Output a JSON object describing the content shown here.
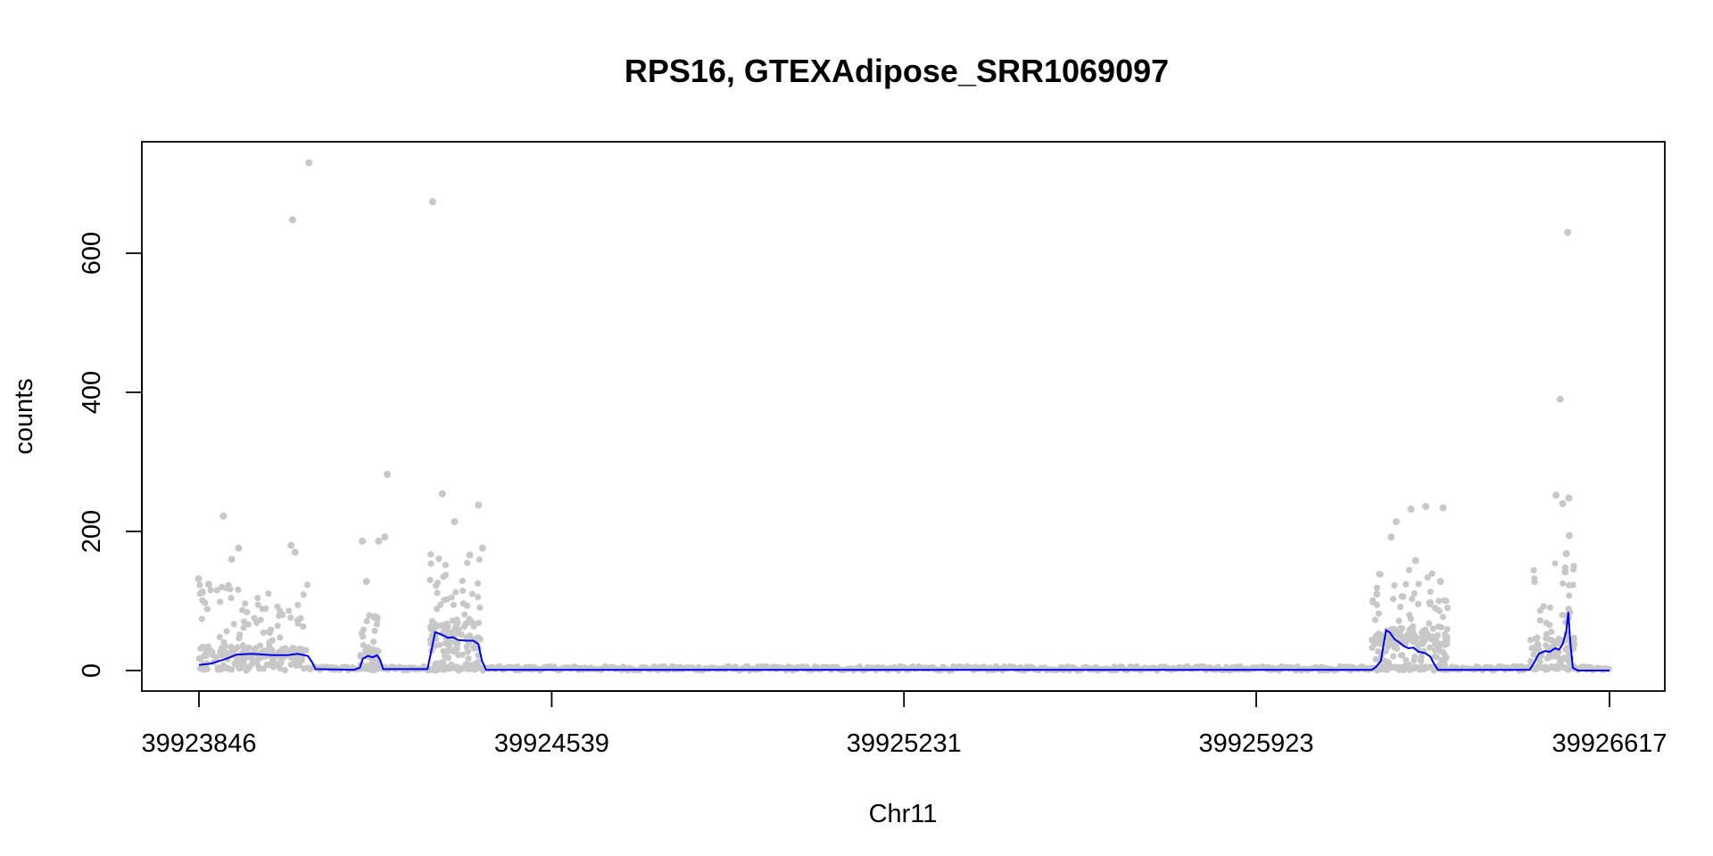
{
  "chart_data": {
    "type": "scatter",
    "title": "RPS16, GTEXAdipose_SRR1069097",
    "xlabel": "Chr11",
    "ylabel": "counts",
    "xlim": [
      39923846,
      39926617
    ],
    "ylim": [
      0,
      730
    ],
    "x_ticks": [
      39923846,
      39924539,
      39925231,
      39925923,
      39926617
    ],
    "y_ticks": [
      0,
      200,
      400,
      600
    ],
    "grid": false,
    "legend": "none",
    "colors": {
      "points": "#c8c8c8",
      "smooth": "#0000ee",
      "axis": "#000000"
    },
    "outlier_points": [
      {
        "x": 39924030,
        "y": 648
      },
      {
        "x": 39924062,
        "y": 730
      },
      {
        "x": 39924305,
        "y": 674
      },
      {
        "x": 39926535,
        "y": 630
      },
      {
        "x": 39926520,
        "y": 390
      },
      {
        "x": 39924216,
        "y": 282
      },
      {
        "x": 39923894,
        "y": 222
      },
      {
        "x": 39926512,
        "y": 252
      },
      {
        "x": 39926537,
        "y": 248
      },
      {
        "x": 39926525,
        "y": 240
      },
      {
        "x": 39924324,
        "y": 254
      },
      {
        "x": 39924395,
        "y": 238
      },
      {
        "x": 39924199,
        "y": 186
      },
      {
        "x": 39924211,
        "y": 192
      },
      {
        "x": 39924167,
        "y": 186
      },
      {
        "x": 39924348,
        "y": 214
      },
      {
        "x": 39924403,
        "y": 176
      },
      {
        "x": 39924378,
        "y": 166
      },
      {
        "x": 39926227,
        "y": 232
      },
      {
        "x": 39926256,
        "y": 236
      },
      {
        "x": 39926290,
        "y": 234
      },
      {
        "x": 39926198,
        "y": 214
      },
      {
        "x": 39926188,
        "y": 192
      },
      {
        "x": 39926236,
        "y": 158
      },
      {
        "x": 39924027,
        "y": 180
      },
      {
        "x": 39924035,
        "y": 170
      },
      {
        "x": 39923924,
        "y": 176
      },
      {
        "x": 39923910,
        "y": 160
      },
      {
        "x": 39926538,
        "y": 194
      },
      {
        "x": 39926532,
        "y": 168
      },
      {
        "x": 39923845,
        "y": 132
      },
      {
        "x": 39923865,
        "y": 124
      },
      {
        "x": 39924175,
        "y": 128
      },
      {
        "x": 39926530,
        "y": 142
      },
      {
        "x": 39926160,
        "y": 110
      },
      {
        "x": 39926285,
        "y": 128
      }
    ],
    "clusters": [
      {
        "x_start": 39923846,
        "x_end": 39924060,
        "points": 230,
        "y_max": 130,
        "y_median": 22
      },
      {
        "x_start": 39924163,
        "x_end": 39924200,
        "points": 50,
        "y_max": 110,
        "y_median": 18
      },
      {
        "x_start": 39924300,
        "x_end": 39924400,
        "points": 140,
        "y_max": 170,
        "y_median": 45
      },
      {
        "x_start": 39926150,
        "x_end": 39926300,
        "points": 190,
        "y_max": 150,
        "y_median": 38
      },
      {
        "x_start": 39926460,
        "x_end": 39926550,
        "points": 100,
        "y_max": 160,
        "y_median": 30
      }
    ],
    "baseline": {
      "x_start": 39924060,
      "x_end": 39926617,
      "y_range": [
        0,
        6
      ]
    },
    "smooth_line": [
      {
        "x": 39923846,
        "y": 8
      },
      {
        "x": 39923870,
        "y": 10
      },
      {
        "x": 39923900,
        "y": 17
      },
      {
        "x": 39923920,
        "y": 23
      },
      {
        "x": 39923950,
        "y": 24
      },
      {
        "x": 39923990,
        "y": 22
      },
      {
        "x": 39924020,
        "y": 22
      },
      {
        "x": 39924040,
        "y": 24
      },
      {
        "x": 39924060,
        "y": 21
      },
      {
        "x": 39924068,
        "y": 12
      },
      {
        "x": 39924075,
        "y": 2
      },
      {
        "x": 39924150,
        "y": 1
      },
      {
        "x": 39924162,
        "y": 4
      },
      {
        "x": 39924168,
        "y": 17
      },
      {
        "x": 39924178,
        "y": 21
      },
      {
        "x": 39924187,
        "y": 19
      },
      {
        "x": 39924196,
        "y": 22
      },
      {
        "x": 39924202,
        "y": 15
      },
      {
        "x": 39924208,
        "y": 2
      },
      {
        "x": 39924295,
        "y": 2
      },
      {
        "x": 39924303,
        "y": 30
      },
      {
        "x": 39924310,
        "y": 55
      },
      {
        "x": 39924322,
        "y": 52
      },
      {
        "x": 39924335,
        "y": 47
      },
      {
        "x": 39924345,
        "y": 48
      },
      {
        "x": 39924355,
        "y": 44
      },
      {
        "x": 39924370,
        "y": 43
      },
      {
        "x": 39924385,
        "y": 43
      },
      {
        "x": 39924395,
        "y": 38
      },
      {
        "x": 39924402,
        "y": 14
      },
      {
        "x": 39924410,
        "y": 1
      },
      {
        "x": 39926150,
        "y": 1
      },
      {
        "x": 39926158,
        "y": 5
      },
      {
        "x": 39926168,
        "y": 14
      },
      {
        "x": 39926178,
        "y": 58
      },
      {
        "x": 39926185,
        "y": 55
      },
      {
        "x": 39926195,
        "y": 45
      },
      {
        "x": 39926205,
        "y": 40
      },
      {
        "x": 39926213,
        "y": 35
      },
      {
        "x": 39926222,
        "y": 32
      },
      {
        "x": 39926232,
        "y": 33
      },
      {
        "x": 39926242,
        "y": 27
      },
      {
        "x": 39926255,
        "y": 25
      },
      {
        "x": 39926265,
        "y": 20
      },
      {
        "x": 39926272,
        "y": 10
      },
      {
        "x": 39926280,
        "y": 1
      },
      {
        "x": 39926460,
        "y": 1
      },
      {
        "x": 39926468,
        "y": 10
      },
      {
        "x": 39926478,
        "y": 24
      },
      {
        "x": 39926490,
        "y": 28
      },
      {
        "x": 39926500,
        "y": 27
      },
      {
        "x": 39926510,
        "y": 32
      },
      {
        "x": 39926518,
        "y": 30
      },
      {
        "x": 39926525,
        "y": 38
      },
      {
        "x": 39926532,
        "y": 56
      },
      {
        "x": 39926536,
        "y": 84
      },
      {
        "x": 39926540,
        "y": 40
      },
      {
        "x": 39926545,
        "y": 4
      },
      {
        "x": 39926555,
        "y": 0
      },
      {
        "x": 39926617,
        "y": 0
      }
    ]
  }
}
